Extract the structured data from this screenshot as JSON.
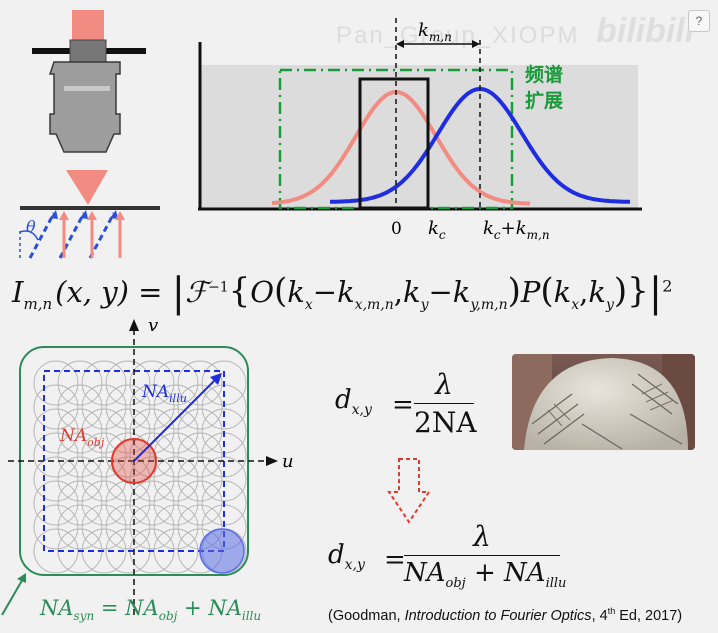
{
  "watermark": "Pan_Group_XIOPM",
  "bili_logo": "bilibili",
  "help_button": "?",
  "microscope": {
    "theta_label": "θ",
    "colors": {
      "beam": "#f28b82",
      "objective": "#9a9a9a",
      "tilted": "#2b4fd8",
      "normal": "#f28b82"
    }
  },
  "spectrum_plot": {
    "top_label_k": "k",
    "top_label_sub": "m,n",
    "label_zero": "0",
    "label_kc": "k",
    "label_kc_sub": "c",
    "label_kc2": "k",
    "label_kc2_sub": "c",
    "label_plus": "+k",
    "label_plus_sub": "m,n",
    "cn_line1": "频谱",
    "cn_line2": "扩展",
    "colors": {
      "pink": "#f28b82",
      "blue": "#1e2de0",
      "green": "#1a9a3a"
    }
  },
  "main_equation": {
    "I": "I",
    "I_sub": "m,n",
    "args": "(x, y) =",
    "F": "ℱ",
    "F_sup": "−1",
    "O": "O",
    "kx": "k",
    "kx_sub": "x",
    "minus": "−",
    "kxmn": "k",
    "kxmn_sub": "x,m,n",
    "ky": "k",
    "ky_sub": "y",
    "kymn": "k",
    "kymn_sub": "y,m,n",
    "P": "P",
    "exponent": "2"
  },
  "k_space": {
    "axis_v": "v",
    "axis_u": "u",
    "na_obj": "NA",
    "na_obj_sub": "obj",
    "na_illu": "NA",
    "na_illu_sub": "illu",
    "syn_label": "NA",
    "syn_sub": "syn",
    "syn_eq": "= NA",
    "syn_obj_sub": "obj",
    "syn_plus": "+ NA",
    "syn_illu_sub": "illu",
    "colors": {
      "green": "#2e8b57",
      "blue": "#1e2de0",
      "red": "#e03a2f",
      "grid": "#b8b8b8"
    }
  },
  "resolution_top": {
    "d": "d",
    "d_sub": "x,y",
    "eq": "=",
    "numerator": "λ",
    "denominator": "2NA"
  },
  "resolution_bottom": {
    "d": "d",
    "d_sub": "x,y",
    "eq": "=",
    "numerator": "λ",
    "den_na1": "NA",
    "den_obj": "obj",
    "den_plus": "+",
    "den_na2": "NA",
    "den_illu": "illu"
  },
  "citation": {
    "prefix": "(Goodman, ",
    "title": "Introduction to Fourier Optics",
    "middle": ", 4",
    "sup": "th",
    "suffix": " Ed, 2017)"
  }
}
